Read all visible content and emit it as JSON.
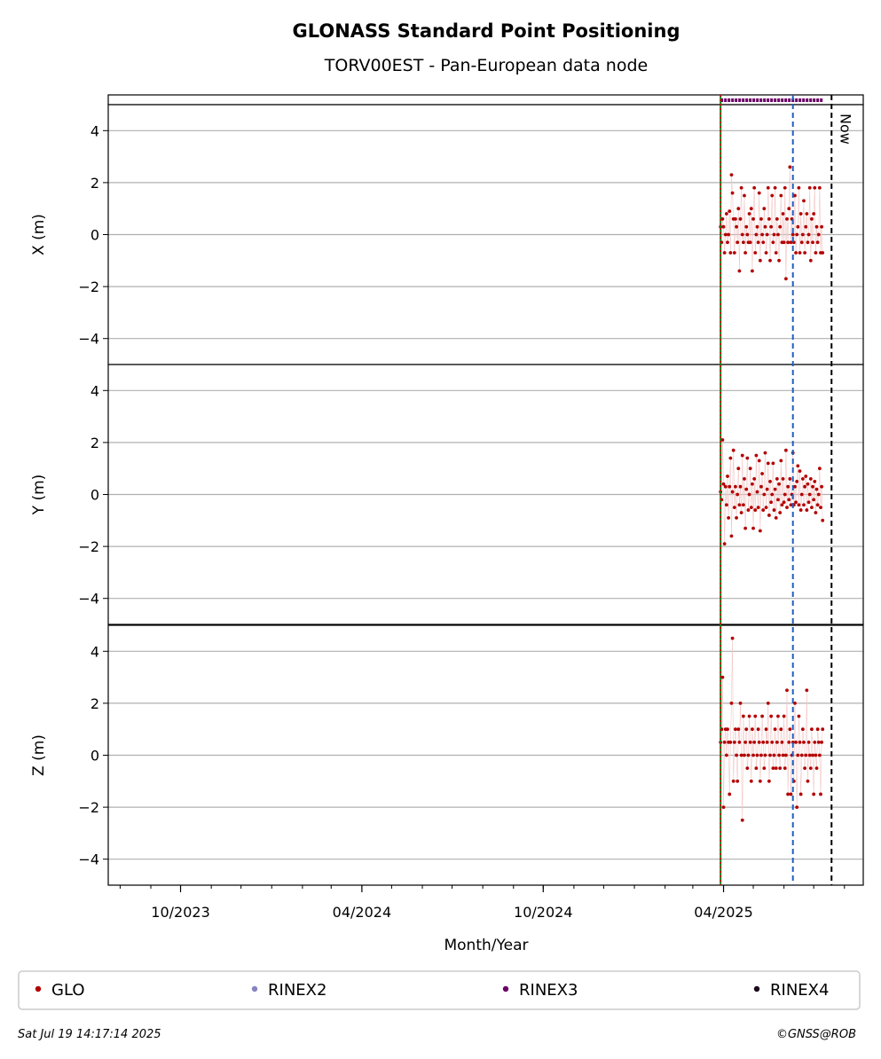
{
  "chart_data": {
    "type": "scatter",
    "title": "GLONASS Standard Point Positioning",
    "subtitle": "TORV00EST - Pan-European data node",
    "xlabel": "Month/Year",
    "x_tick_labels": [
      "10/2023",
      "04/2024",
      "10/2024",
      "04/2025"
    ],
    "x_tick_dates": [
      "2023-10-01",
      "2024-04-01",
      "2024-10-01",
      "2025-04-01"
    ],
    "x_range": [
      "2023-07-20",
      "2025-08-20"
    ],
    "grid": "horizontal",
    "vlines": [
      {
        "date": "2025-03-29",
        "color": "#1a7a1a",
        "style": "solid"
      },
      {
        "date": "2025-03-29",
        "color": "#cc0000",
        "style": "dotted"
      },
      {
        "date": "2025-06-10",
        "color": "#1f5fbf",
        "style": "dashed"
      },
      {
        "date": "2025-07-19",
        "color": "#000000",
        "style": "dashed",
        "label": "Now"
      }
    ],
    "rinex_strip": {
      "start": "2025-03-29",
      "end": "2025-07-10",
      "color": "#6b0066"
    },
    "panels": [
      {
        "ylabel": "X (m)",
        "ylim": [
          -5,
          5
        ],
        "yticks": [
          4,
          2,
          0,
          -2,
          -4
        ],
        "series": [
          {
            "name": "GLO",
            "color": "#b30000",
            "x": [
              "2025-03-29",
              "2025-03-30",
              "2025-03-31",
              "2025-04-01",
              "2025-04-02",
              "2025-04-03",
              "2025-04-04",
              "2025-04-05",
              "2025-04-06",
              "2025-04-07",
              "2025-04-08",
              "2025-04-09",
              "2025-04-10",
              "2025-04-11",
              "2025-04-12",
              "2025-04-13",
              "2025-04-14",
              "2025-04-15",
              "2025-04-16",
              "2025-04-17",
              "2025-04-18",
              "2025-04-19",
              "2025-04-20",
              "2025-04-21",
              "2025-04-22",
              "2025-04-23",
              "2025-04-24",
              "2025-04-25",
              "2025-04-26",
              "2025-04-27",
              "2025-04-28",
              "2025-04-29",
              "2025-04-30",
              "2025-05-01",
              "2025-05-02",
              "2025-05-03",
              "2025-05-04",
              "2025-05-05",
              "2025-05-06",
              "2025-05-07",
              "2025-05-08",
              "2025-05-09",
              "2025-05-10",
              "2025-05-11",
              "2025-05-12",
              "2025-05-13",
              "2025-05-14",
              "2025-05-15",
              "2025-05-16",
              "2025-05-17",
              "2025-05-18",
              "2025-05-19",
              "2025-05-20",
              "2025-05-21",
              "2025-05-22",
              "2025-05-23",
              "2025-05-24",
              "2025-05-25",
              "2025-05-26",
              "2025-05-27",
              "2025-05-28",
              "2025-05-29",
              "2025-05-30",
              "2025-05-31",
              "2025-06-01",
              "2025-06-02",
              "2025-06-03",
              "2025-06-04",
              "2025-06-05",
              "2025-06-06",
              "2025-06-07",
              "2025-06-08",
              "2025-06-09",
              "2025-06-10",
              "2025-06-11",
              "2025-06-12",
              "2025-06-13",
              "2025-06-14",
              "2025-06-15",
              "2025-06-16",
              "2025-06-17",
              "2025-06-18",
              "2025-06-19",
              "2025-06-20",
              "2025-06-21",
              "2025-06-22",
              "2025-06-23",
              "2025-06-24",
              "2025-06-25",
              "2025-06-26",
              "2025-06-27",
              "2025-06-28",
              "2025-06-29",
              "2025-06-30",
              "2025-07-01",
              "2025-07-02",
              "2025-07-03",
              "2025-07-04",
              "2025-07-05",
              "2025-07-06",
              "2025-07-07",
              "2025-07-08",
              "2025-07-09",
              "2025-07-10"
            ],
            "y": [
              0.3,
              -0.3,
              0.6,
              0.3,
              -0.7,
              0.0,
              0.8,
              -0.3,
              0.0,
              0.9,
              -0.7,
              2.3,
              1.6,
              0.6,
              -0.7,
              0.6,
              0.3,
              -0.3,
              1.0,
              -1.4,
              0.6,
              1.8,
              0.0,
              -0.3,
              1.5,
              -0.7,
              0.3,
              0.0,
              -0.3,
              0.8,
              -0.3,
              1.0,
              -1.4,
              0.6,
              1.8,
              -0.7,
              0.0,
              0.3,
              -0.3,
              1.6,
              -1.0,
              0.6,
              0.0,
              -0.3,
              1.0,
              0.3,
              -0.7,
              0.0,
              1.8,
              0.6,
              -1.0,
              0.3,
              1.5,
              -0.3,
              0.0,
              1.8,
              -0.7,
              0.6,
              0.0,
              -1.0,
              0.3,
              1.5,
              -0.3,
              0.8,
              -0.3,
              1.8,
              -1.7,
              0.6,
              -0.3,
              1.0,
              2.6,
              -0.3,
              0.6,
              0.0,
              -0.3,
              1.5,
              -0.7,
              0.0,
              0.3,
              1.8,
              -0.7,
              0.8,
              -0.3,
              0.0,
              1.3,
              -0.7,
              0.3,
              0.8,
              -0.3,
              0.0,
              1.8,
              -1.0,
              0.6,
              -0.3,
              0.8,
              1.8,
              -0.7,
              0.3,
              -0.3,
              0.0,
              1.8,
              -0.7,
              0.3,
              -0.7
            ]
          }
        ]
      },
      {
        "ylabel": "Y (m)",
        "ylim": [
          -5,
          5
        ],
        "yticks": [
          4,
          2,
          0,
          -2,
          -4
        ],
        "series": [
          {
            "name": "GLO",
            "color": "#b30000",
            "x": [
              "2025-03-29",
              "2025-03-30",
              "2025-03-31",
              "2025-04-01",
              "2025-04-02",
              "2025-04-03",
              "2025-04-04",
              "2025-04-05",
              "2025-04-06",
              "2025-04-07",
              "2025-04-08",
              "2025-04-09",
              "2025-04-10",
              "2025-04-11",
              "2025-04-12",
              "2025-04-13",
              "2025-04-14",
              "2025-04-15",
              "2025-04-16",
              "2025-04-17",
              "2025-04-18",
              "2025-04-19",
              "2025-04-20",
              "2025-04-21",
              "2025-04-22",
              "2025-04-23",
              "2025-04-24",
              "2025-04-25",
              "2025-04-26",
              "2025-04-27",
              "2025-04-28",
              "2025-04-29",
              "2025-04-30",
              "2025-05-01",
              "2025-05-02",
              "2025-05-03",
              "2025-05-04",
              "2025-05-05",
              "2025-05-06",
              "2025-05-07",
              "2025-05-08",
              "2025-05-09",
              "2025-05-10",
              "2025-05-11",
              "2025-05-12",
              "2025-05-13",
              "2025-05-14",
              "2025-05-15",
              "2025-05-16",
              "2025-05-17",
              "2025-05-18",
              "2025-05-19",
              "2025-05-20",
              "2025-05-21",
              "2025-05-22",
              "2025-05-23",
              "2025-05-24",
              "2025-05-25",
              "2025-05-26",
              "2025-05-27",
              "2025-05-28",
              "2025-05-29",
              "2025-05-30",
              "2025-05-31",
              "2025-06-01",
              "2025-06-02",
              "2025-06-03",
              "2025-06-04",
              "2025-06-05",
              "2025-06-06",
              "2025-06-07",
              "2025-06-08",
              "2025-06-09",
              "2025-06-10",
              "2025-06-11",
              "2025-06-12",
              "2025-06-13",
              "2025-06-14",
              "2025-06-15",
              "2025-06-16",
              "2025-06-17",
              "2025-06-18",
              "2025-06-19",
              "2025-06-20",
              "2025-06-21",
              "2025-06-22",
              "2025-06-23",
              "2025-06-24",
              "2025-06-25",
              "2025-06-26",
              "2025-06-27",
              "2025-06-28",
              "2025-06-29",
              "2025-06-30",
              "2025-07-01",
              "2025-07-02",
              "2025-07-03",
              "2025-07-04",
              "2025-07-05",
              "2025-07-06",
              "2025-07-07",
              "2025-07-08",
              "2025-07-09",
              "2025-07-10"
            ],
            "y": [
              0.1,
              -0.2,
              2.1,
              0.4,
              -1.9,
              0.3,
              -0.4,
              0.7,
              -0.9,
              0.3,
              1.4,
              -1.6,
              0.1,
              1.7,
              -0.5,
              0.3,
              -0.9,
              0.0,
              1.0,
              -0.4,
              0.3,
              -0.7,
              1.5,
              -0.4,
              0.6,
              -1.3,
              0.2,
              1.4,
              -0.6,
              0.0,
              1.0,
              -0.5,
              0.4,
              -1.3,
              0.6,
              -0.6,
              1.5,
              0.1,
              -0.5,
              1.3,
              -1.4,
              0.3,
              0.8,
              -0.6,
              0.0,
              1.6,
              -0.5,
              0.2,
              1.2,
              -0.8,
              0.5,
              -0.3,
              0.0,
              1.2,
              -0.6,
              0.2,
              -0.9,
              0.6,
              -0.2,
              0.4,
              -0.7,
              1.3,
              -0.4,
              0.6,
              -0.3,
              0.0,
              1.7,
              -0.5,
              0.3,
              -0.2,
              0.6,
              -0.4,
              0.0,
              1.6,
              -0.4,
              0.3,
              -0.3,
              0.5,
              1.1,
              -0.4,
              0.9,
              -0.6,
              0.0,
              0.6,
              -0.4,
              0.3,
              0.7,
              -0.6,
              0.4,
              -0.3,
              0.0,
              0.6,
              -0.5,
              0.3,
              -0.2,
              0.5,
              -0.7,
              0.2,
              -0.4,
              0.0,
              1.0,
              -0.5,
              0.3,
              -1.0
            ]
          }
        ]
      },
      {
        "ylabel": "Z (m)",
        "ylim": [
          -5,
          5
        ],
        "yticks": [
          4,
          2,
          0,
          -2,
          -4
        ],
        "series": [
          {
            "name": "GLO",
            "color": "#b30000",
            "x": [
              "2025-03-29",
              "2025-03-30",
              "2025-03-31",
              "2025-04-01",
              "2025-04-02",
              "2025-04-03",
              "2025-04-04",
              "2025-04-05",
              "2025-04-06",
              "2025-04-07",
              "2025-04-08",
              "2025-04-09",
              "2025-04-10",
              "2025-04-11",
              "2025-04-12",
              "2025-04-13",
              "2025-04-14",
              "2025-04-15",
              "2025-04-16",
              "2025-04-17",
              "2025-04-18",
              "2025-04-19",
              "2025-04-20",
              "2025-04-21",
              "2025-04-22",
              "2025-04-23",
              "2025-04-24",
              "2025-04-25",
              "2025-04-26",
              "2025-04-27",
              "2025-04-28",
              "2025-04-29",
              "2025-04-30",
              "2025-05-01",
              "2025-05-02",
              "2025-05-03",
              "2025-05-04",
              "2025-05-05",
              "2025-05-06",
              "2025-05-07",
              "2025-05-08",
              "2025-05-09",
              "2025-05-10",
              "2025-05-11",
              "2025-05-12",
              "2025-05-13",
              "2025-05-14",
              "2025-05-15",
              "2025-05-16",
              "2025-05-17",
              "2025-05-18",
              "2025-05-19",
              "2025-05-20",
              "2025-05-21",
              "2025-05-22",
              "2025-05-23",
              "2025-05-24",
              "2025-05-25",
              "2025-05-26",
              "2025-05-27",
              "2025-05-28",
              "2025-05-29",
              "2025-05-30",
              "2025-05-31",
              "2025-06-01",
              "2025-06-02",
              "2025-06-03",
              "2025-06-04",
              "2025-06-05",
              "2025-06-06",
              "2025-06-07",
              "2025-06-08",
              "2025-06-09",
              "2025-06-10",
              "2025-06-11",
              "2025-06-12",
              "2025-06-13",
              "2025-06-14",
              "2025-06-15",
              "2025-06-16",
              "2025-06-17",
              "2025-06-18",
              "2025-06-19",
              "2025-06-20",
              "2025-06-21",
              "2025-06-22",
              "2025-06-23",
              "2025-06-24",
              "2025-06-25",
              "2025-06-26",
              "2025-06-27",
              "2025-06-28",
              "2025-06-29",
              "2025-06-30",
              "2025-07-01",
              "2025-07-02",
              "2025-07-03",
              "2025-07-04",
              "2025-07-05",
              "2025-07-06",
              "2025-07-07",
              "2025-07-08",
              "2025-07-09",
              "2025-07-10"
            ],
            "y": [
              0.5,
              1.0,
              3.0,
              -2.0,
              0.5,
              1.0,
              0.0,
              1.0,
              0.5,
              -1.5,
              0.5,
              2.0,
              4.5,
              -1.0,
              0.5,
              1.0,
              0.0,
              -1.0,
              1.0,
              0.5,
              2.0,
              0.0,
              -2.5,
              1.5,
              0.0,
              0.5,
              1.0,
              -0.5,
              0.0,
              1.5,
              0.5,
              -1.0,
              1.0,
              0.0,
              0.5,
              1.5,
              -0.5,
              0.0,
              1.0,
              0.5,
              -1.0,
              0.0,
              1.5,
              0.5,
              -0.5,
              0.0,
              1.0,
              0.5,
              2.0,
              -1.0,
              0.0,
              1.5,
              0.5,
              -0.5,
              0.0,
              1.0,
              -0.5,
              0.5,
              1.5,
              0.0,
              -0.5,
              1.0,
              0.5,
              0.0,
              1.5,
              -0.5,
              0.0,
              2.5,
              -1.5,
              0.5,
              1.0,
              -1.5,
              0.0,
              0.5,
              -1.0,
              2.0,
              0.5,
              -2.0,
              0.0,
              1.5,
              0.5,
              -1.5,
              0.0,
              1.0,
              0.5,
              -0.5,
              0.0,
              2.5,
              -1.0,
              0.5,
              0.0,
              -0.5,
              1.0,
              0.0,
              -1.5,
              0.5,
              0.0,
              -0.5,
              1.0,
              0.5,
              0.0,
              -1.5,
              0.5,
              1.0
            ]
          }
        ]
      }
    ],
    "legend": {
      "placement": "bottom",
      "entries": [
        {
          "label": "GLO",
          "color": "#b30000"
        },
        {
          "label": "RINEX2",
          "color": "#8585c2"
        },
        {
          "label": "RINEX3",
          "color": "#6b0066"
        },
        {
          "label": "RINEX4",
          "color": "#1a0a1a"
        }
      ]
    }
  },
  "footer": {
    "timestamp": "Sat Jul 19 14:17:14 2025",
    "credit": "©GNSS@ROB"
  }
}
